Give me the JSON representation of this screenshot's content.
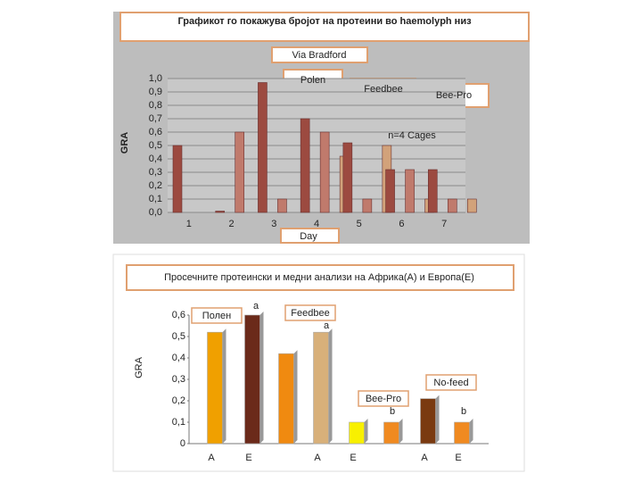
{
  "charts": [
    {
      "type": "bar",
      "title": "Графикот го покажува бројот на протеини во  haemolyph  низ",
      "subtitle": "Via Bradford",
      "y_label": "GRA",
      "x_label": "Day",
      "annotations": [
        "Polen",
        "Feedbee",
        "Bee-Pro",
        "n=4 Cages"
      ],
      "categories": [
        "1",
        "2",
        "3",
        "4",
        "5",
        "6",
        "7"
      ],
      "series": [
        {
          "color": "#9c4a40",
          "values": [
            0.5,
            0.01,
            0.97,
            0.7,
            0.52,
            0.32,
            0.32
          ]
        },
        {
          "color": "#c07a6c",
          "values": [
            null,
            0.6,
            0.1,
            0.6,
            0.1,
            0.32,
            0.1
          ]
        },
        {
          "color": "#d2a27a",
          "values": [
            null,
            null,
            null,
            0.42,
            0.5,
            0.1,
            0.1
          ]
        }
      ],
      "ylim": [
        0,
        1
      ],
      "yticks": [
        {
          "value": 0,
          "label": "0,0"
        },
        {
          "value": 0.1,
          "label": "0,1"
        },
        {
          "value": 0.2,
          "label": "0,2"
        },
        {
          "value": 0.3,
          "label": "0,3"
        },
        {
          "value": 0.4,
          "label": "0,4"
        },
        {
          "value": 0.5,
          "label": "0,5"
        },
        {
          "value": 0.6,
          "label": "0,6"
        },
        {
          "value": 0.7,
          "label": "0,7"
        },
        {
          "value": 0.8,
          "label": "0,8"
        },
        {
          "value": 0.9,
          "label": "0,9"
        },
        {
          "value": 1,
          "label": "1,0"
        }
      ],
      "grid": true
    },
    {
      "type": "bar",
      "title": "Просечните  протеински и медни анализи на Африка(А) и Европа(Е)",
      "y_label": "GRA",
      "annotations": [
        "Полен",
        "a",
        "Feedbee",
        "a",
        "No-feed",
        "Bee-Pro",
        "b",
        "b"
      ],
      "categories": [
        "A",
        "E",
        null,
        "A",
        "E",
        null,
        "A",
        "E"
      ],
      "values": [
        0.52,
        0.6,
        0.42,
        0.52,
        0.1,
        0.1,
        0.21,
        0.1
      ],
      "colors": [
        "#f0a000",
        "#6b2a1a",
        "#f08a10",
        "#d8b07a",
        "#f8f000",
        "#f08a20",
        "#7a3a10",
        "#f08a20"
      ],
      "ylim": [
        0,
        0.6
      ],
      "yticks": [
        0,
        {
          "value": 0.1,
          "label": "0,1"
        },
        {
          "value": 0.2,
          "label": "0,2"
        },
        {
          "value": 0.3,
          "label": "0,3"
        },
        {
          "value": 0.4,
          "label": "0,4"
        },
        {
          "value": 0.5,
          "label": "0,5"
        },
        {
          "value": 0.6,
          "label": "0,6"
        }
      ],
      "grid": false
    }
  ]
}
